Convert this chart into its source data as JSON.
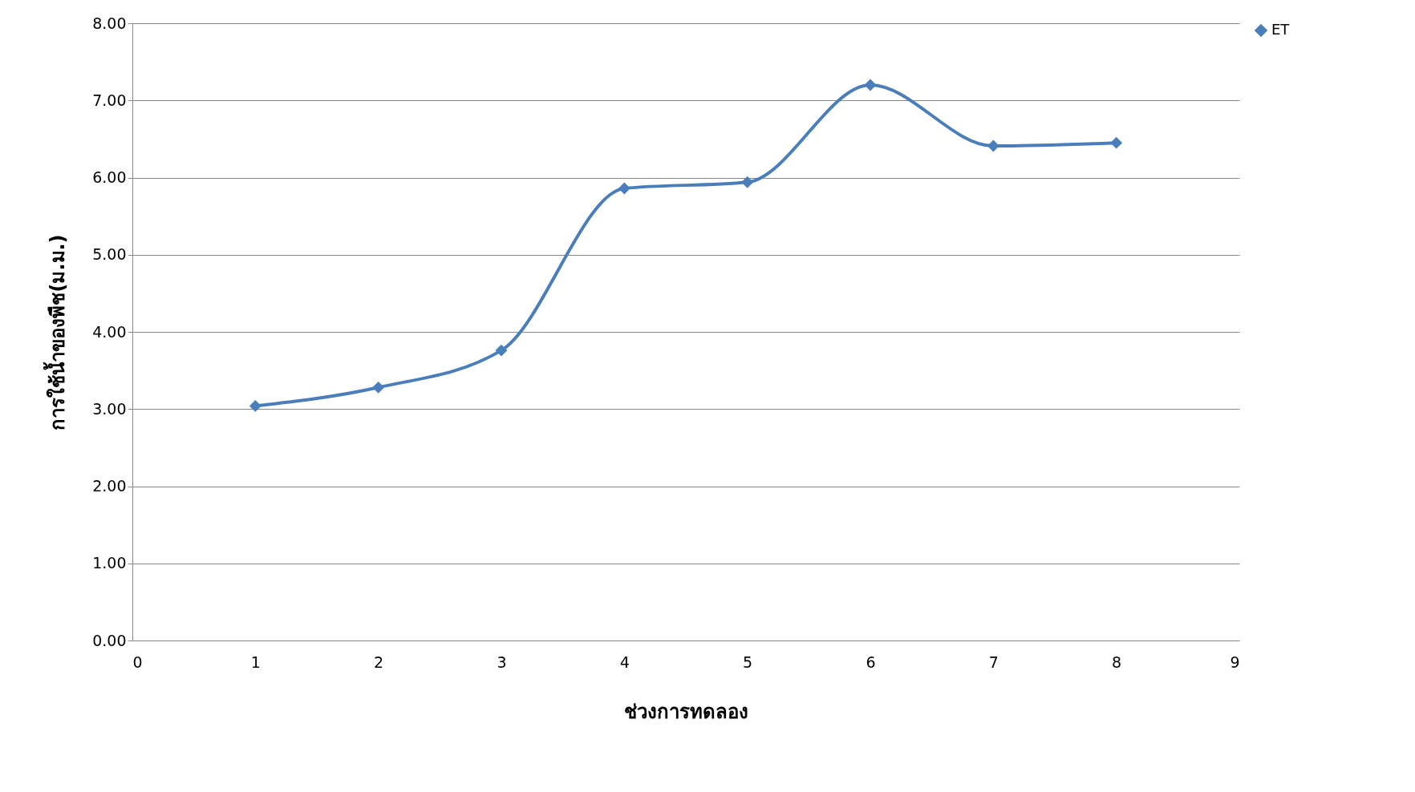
{
  "chart_data": {
    "type": "line",
    "xlabel": "ช่วงการทดลอง",
    "ylabel": "การใช้น้ำของพืช(ม.ม.)",
    "x": [
      1,
      2,
      3,
      4,
      5,
      6,
      7,
      8
    ],
    "series": [
      {
        "name": "ET",
        "color": "#4a7ebb",
        "values": [
          3.04,
          3.28,
          3.76,
          5.86,
          5.94,
          7.2,
          6.41,
          6.45
        ]
      }
    ],
    "xlim": [
      0,
      9
    ],
    "xticks": [
      0,
      1,
      2,
      3,
      4,
      5,
      6,
      7,
      8,
      9
    ],
    "ylim": [
      0,
      8
    ],
    "yticks": [
      {
        "value": 0,
        "label": "0.00"
      },
      {
        "value": 1,
        "label": "1.00"
      },
      {
        "value": 2,
        "label": "2.00"
      },
      {
        "value": 3,
        "label": "3.00"
      },
      {
        "value": 4,
        "label": "4.00"
      },
      {
        "value": 5,
        "label": "5.00"
      },
      {
        "value": 6,
        "label": "6.00"
      },
      {
        "value": 7,
        "label": "7.00"
      },
      {
        "value": 8,
        "label": "8.00"
      }
    ],
    "grid": "y",
    "legend": "right",
    "marker": "diamond",
    "line_style": "solid"
  }
}
